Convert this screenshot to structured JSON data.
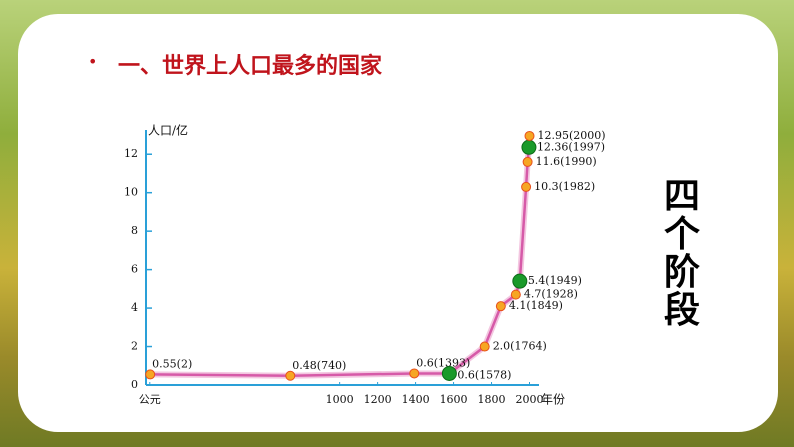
{
  "slide": {
    "bullet": "•",
    "title": "一、世界上人口最多的国家",
    "side_text": "四个阶段"
  },
  "chart_data": {
    "type": "line",
    "y_label": "人口/亿",
    "x_label": "年份",
    "x": [
      2,
      740,
      1393,
      1578,
      1764,
      1849,
      1928,
      1949,
      1982,
      1990,
      1997,
      2000
    ],
    "series": [
      {
        "name": "人口",
        "color": "#d65aa8",
        "values": [
          0.55,
          0.48,
          0.6,
          0.6,
          2.0,
          4.1,
          4.7,
          5.4,
          10.3,
          11.6,
          12.36,
          12.95
        ],
        "value_labels": [
          "0.55(2)",
          "0.48(740)",
          "0.6(1393)",
          "0.6(1578)",
          "2.0(1764)",
          "4.1(1849)",
          "4.7(1928)",
          "5.4(1949)",
          "10.3(1982)",
          "11.6(1990)",
          "12.36(1997)",
          "12.95(2000)"
        ],
        "point_colors": [
          "#f6a623",
          "#f6a623",
          "#f6a623",
          "#1a9a2a",
          "#f6a623",
          "#f6a623",
          "#f6a623",
          "#1a9a2a",
          "#f6a623",
          "#f6a623",
          "#1a9a2a",
          "#f6a623"
        ]
      }
    ],
    "xlim": [
      -20,
      2050
    ],
    "ylim": [
      0,
      13
    ],
    "xticks": [
      {
        "value": 0,
        "label": "公元"
      },
      1000,
      1200,
      1400,
      1600,
      1800,
      2000
    ],
    "yticks": [
      0,
      2,
      4,
      6,
      8,
      10,
      12
    ]
  }
}
